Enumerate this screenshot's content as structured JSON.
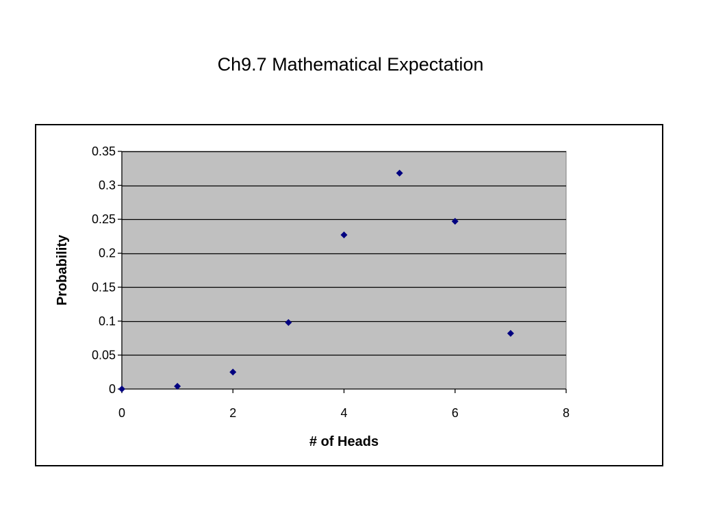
{
  "slide": {
    "title": "Ch9.7 Mathematical Expectation"
  },
  "chart_data": {
    "type": "scatter",
    "title": "",
    "xlabel": "# of Heads",
    "ylabel": "Probability",
    "xlim": [
      0,
      8
    ],
    "ylim": [
      0,
      0.35
    ],
    "x_ticks": [
      0,
      2,
      4,
      6,
      8
    ],
    "y_ticks": [
      0,
      0.05,
      0.1,
      0.15,
      0.2,
      0.25,
      0.3,
      0.35
    ],
    "x_tick_labels": [
      "0",
      "2",
      "4",
      "6",
      "8"
    ],
    "y_tick_labels": [
      "0",
      "0.05",
      "0.1",
      "0.15",
      "0.2",
      "0.25",
      "0.3",
      "0.35"
    ],
    "grid": "horizontal",
    "legend": "none",
    "colors": {
      "plot_area": "#c0c0c0",
      "marker": "#000080",
      "grid": "#000000"
    },
    "marker": "diamond",
    "series": [
      {
        "points": [
          {
            "x": 0,
            "y": 0.0
          },
          {
            "x": 1,
            "y": 0.004
          },
          {
            "x": 2,
            "y": 0.025
          },
          {
            "x": 3,
            "y": 0.098
          },
          {
            "x": 4,
            "y": 0.227
          },
          {
            "x": 5,
            "y": 0.318
          },
          {
            "x": 6,
            "y": 0.247
          },
          {
            "x": 7,
            "y": 0.082
          }
        ]
      }
    ]
  }
}
